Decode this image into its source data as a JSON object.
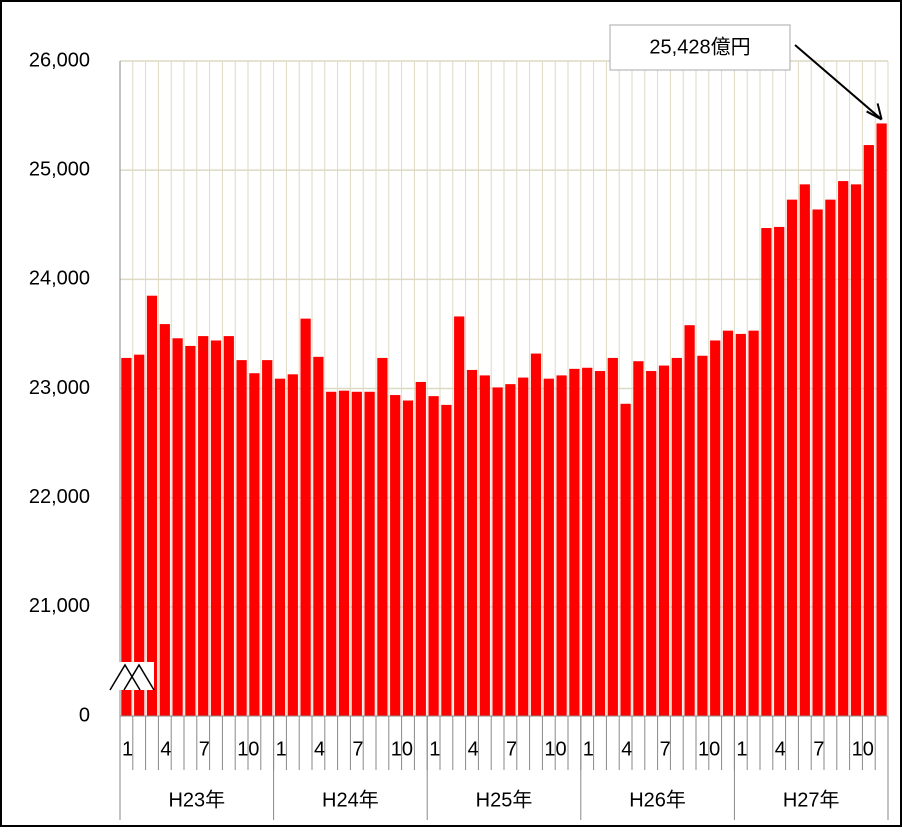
{
  "chart_data": {
    "type": "bar",
    "categories": [
      "1",
      null,
      null,
      "4",
      null,
      null,
      "7",
      null,
      null,
      "10",
      null,
      null,
      "1",
      null,
      null,
      "4",
      null,
      null,
      "7",
      null,
      null,
      "10",
      null,
      null,
      "1",
      null,
      null,
      "4",
      null,
      null,
      "7",
      null,
      null,
      "10",
      null,
      null,
      "1",
      null,
      null,
      "4",
      null,
      null,
      "7",
      null,
      null,
      "10",
      null,
      null,
      "1",
      null,
      null,
      "4",
      null,
      null,
      "7",
      null,
      null,
      "10",
      null,
      null
    ],
    "groups": [
      "H23年",
      "H24年",
      "H25年",
      "H26年",
      "H27年"
    ],
    "values": [
      23280,
      23310,
      23850,
      23590,
      23460,
      23390,
      23480,
      23440,
      23480,
      23260,
      23140,
      23260,
      23090,
      23130,
      23640,
      23290,
      22970,
      22980,
      22970,
      22970,
      23280,
      22940,
      22890,
      23060,
      22930,
      22850,
      23660,
      23170,
      23120,
      23010,
      23040,
      23100,
      23320,
      23090,
      23120,
      23180,
      23190,
      23160,
      23280,
      22860,
      23250,
      23160,
      23210,
      23280,
      23580,
      23300,
      23440,
      23530,
      23500,
      23530,
      24470,
      24480,
      24730,
      24870,
      24640,
      24730,
      24900,
      24870,
      25230,
      25428
    ],
    "color": "#ff0000",
    "ylim": [
      0,
      26000
    ],
    "axis_break": [
      0,
      20000
    ],
    "yticks": [
      {
        "value": 0,
        "label": "0"
      },
      {
        "value": 21000,
        "label": "21,000"
      },
      {
        "value": 22000,
        "label": "22,000"
      },
      {
        "value": 23000,
        "label": "23,000"
      },
      {
        "value": 24000,
        "label": "24,000"
      },
      {
        "value": 25000,
        "label": "25,000"
      },
      {
        "value": 26000,
        "label": "26,000"
      }
    ],
    "grid": true,
    "annotation": "25,428億円"
  }
}
